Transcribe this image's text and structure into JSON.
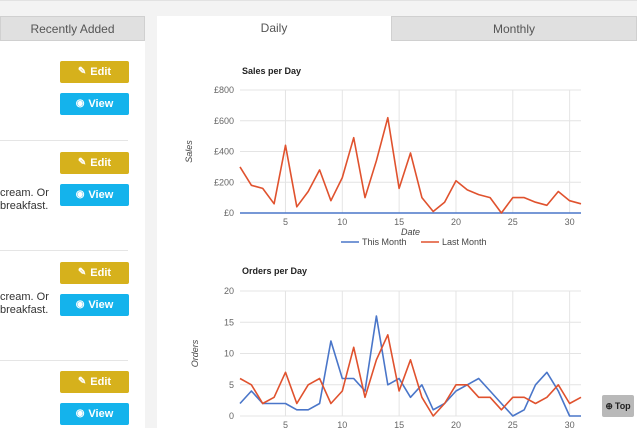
{
  "left": {
    "tab_label": "Recently Added",
    "edit_label": "Edit",
    "view_label": "View",
    "entries": [
      {
        "lines": []
      },
      {
        "lines": [
          "cream. Or",
          "breakfast."
        ]
      },
      {
        "lines": [
          "cream. Or",
          "breakfast."
        ]
      },
      {
        "lines": []
      }
    ]
  },
  "tabs": {
    "daily": "Daily",
    "monthly": "Monthly"
  },
  "top_button": "Top",
  "colors": {
    "this_month": "#4a76c9",
    "last_month": "#e0522e",
    "edit": "#d6b11c",
    "view": "#14b3ec"
  },
  "chart_data": [
    {
      "type": "line",
      "title": "Sales per Day",
      "xlabel": "Date",
      "ylabel": "Sales",
      "xlim": [
        1,
        31
      ],
      "ylim": [
        0,
        800
      ],
      "xticks": [
        5,
        10,
        15,
        20,
        25,
        30
      ],
      "yticks": [
        0,
        200,
        400,
        600,
        800
      ],
      "ytick_labels": [
        "£0",
        "£200",
        "£400",
        "£600",
        "£800"
      ],
      "grid": true,
      "legend_position": "bottom",
      "series": [
        {
          "name": "This Month",
          "color": "#4a76c9",
          "x": [
            1,
            2,
            3,
            4,
            5,
            6,
            7,
            8,
            9,
            10,
            11,
            12,
            13,
            14,
            15,
            16,
            17,
            18,
            19,
            20,
            21,
            22,
            23,
            24,
            25,
            26,
            27,
            28,
            29,
            30,
            31
          ],
          "y": [
            0,
            0,
            0,
            0,
            0,
            0,
            0,
            0,
            0,
            0,
            0,
            0,
            0,
            0,
            0,
            0,
            0,
            0,
            0,
            0,
            0,
            0,
            0,
            0,
            0,
            0,
            0,
            0,
            0,
            0,
            0
          ]
        },
        {
          "name": "Last Month",
          "color": "#e0522e",
          "x": [
            1,
            2,
            3,
            4,
            5,
            6,
            7,
            8,
            9,
            10,
            11,
            12,
            13,
            14,
            15,
            16,
            17,
            18,
            19,
            20,
            21,
            22,
            23,
            24,
            25,
            26,
            27,
            28,
            29,
            30,
            31
          ],
          "y": [
            300,
            180,
            160,
            60,
            440,
            40,
            140,
            280,
            80,
            230,
            490,
            100,
            340,
            620,
            160,
            390,
            100,
            10,
            70,
            210,
            150,
            120,
            100,
            0,
            100,
            100,
            70,
            50,
            140,
            80,
            60
          ]
        }
      ]
    },
    {
      "type": "line",
      "title": "Orders per Day",
      "xlabel": "",
      "ylabel": "Orders",
      "xlim": [
        1,
        31
      ],
      "ylim": [
        0,
        20
      ],
      "xticks": [
        5,
        10,
        15,
        20,
        25,
        30
      ],
      "yticks": [
        0,
        5,
        10,
        15,
        20
      ],
      "ytick_labels": [
        "0",
        "5",
        "10",
        "15",
        "20"
      ],
      "grid": true,
      "series": [
        {
          "name": "This Month",
          "color": "#4a76c9",
          "x": [
            1,
            2,
            3,
            4,
            5,
            6,
            7,
            8,
            9,
            10,
            11,
            12,
            13,
            14,
            15,
            16,
            17,
            18,
            19,
            20,
            21,
            22,
            23,
            24,
            25,
            26,
            27,
            28,
            29,
            30,
            31
          ],
          "y": [
            2,
            4,
            2,
            2,
            2,
            1,
            1,
            2,
            12,
            6,
            6,
            4,
            16,
            5,
            6,
            3,
            5,
            1,
            2,
            4,
            5,
            6,
            4,
            2,
            0,
            1,
            5,
            7,
            4,
            0,
            0
          ]
        },
        {
          "name": "Last Month",
          "color": "#e0522e",
          "x": [
            1,
            2,
            3,
            4,
            5,
            6,
            7,
            8,
            9,
            10,
            11,
            12,
            13,
            14,
            15,
            16,
            17,
            18,
            19,
            20,
            21,
            22,
            23,
            24,
            25,
            26,
            27,
            28,
            29,
            30,
            31
          ],
          "y": [
            6,
            5,
            2,
            3,
            7,
            2,
            5,
            6,
            2,
            4,
            11,
            3,
            9,
            13,
            4,
            9,
            3,
            0,
            2,
            5,
            5,
            3,
            3,
            1,
            3,
            3,
            2,
            3,
            5,
            2,
            3
          ]
        }
      ]
    }
  ]
}
